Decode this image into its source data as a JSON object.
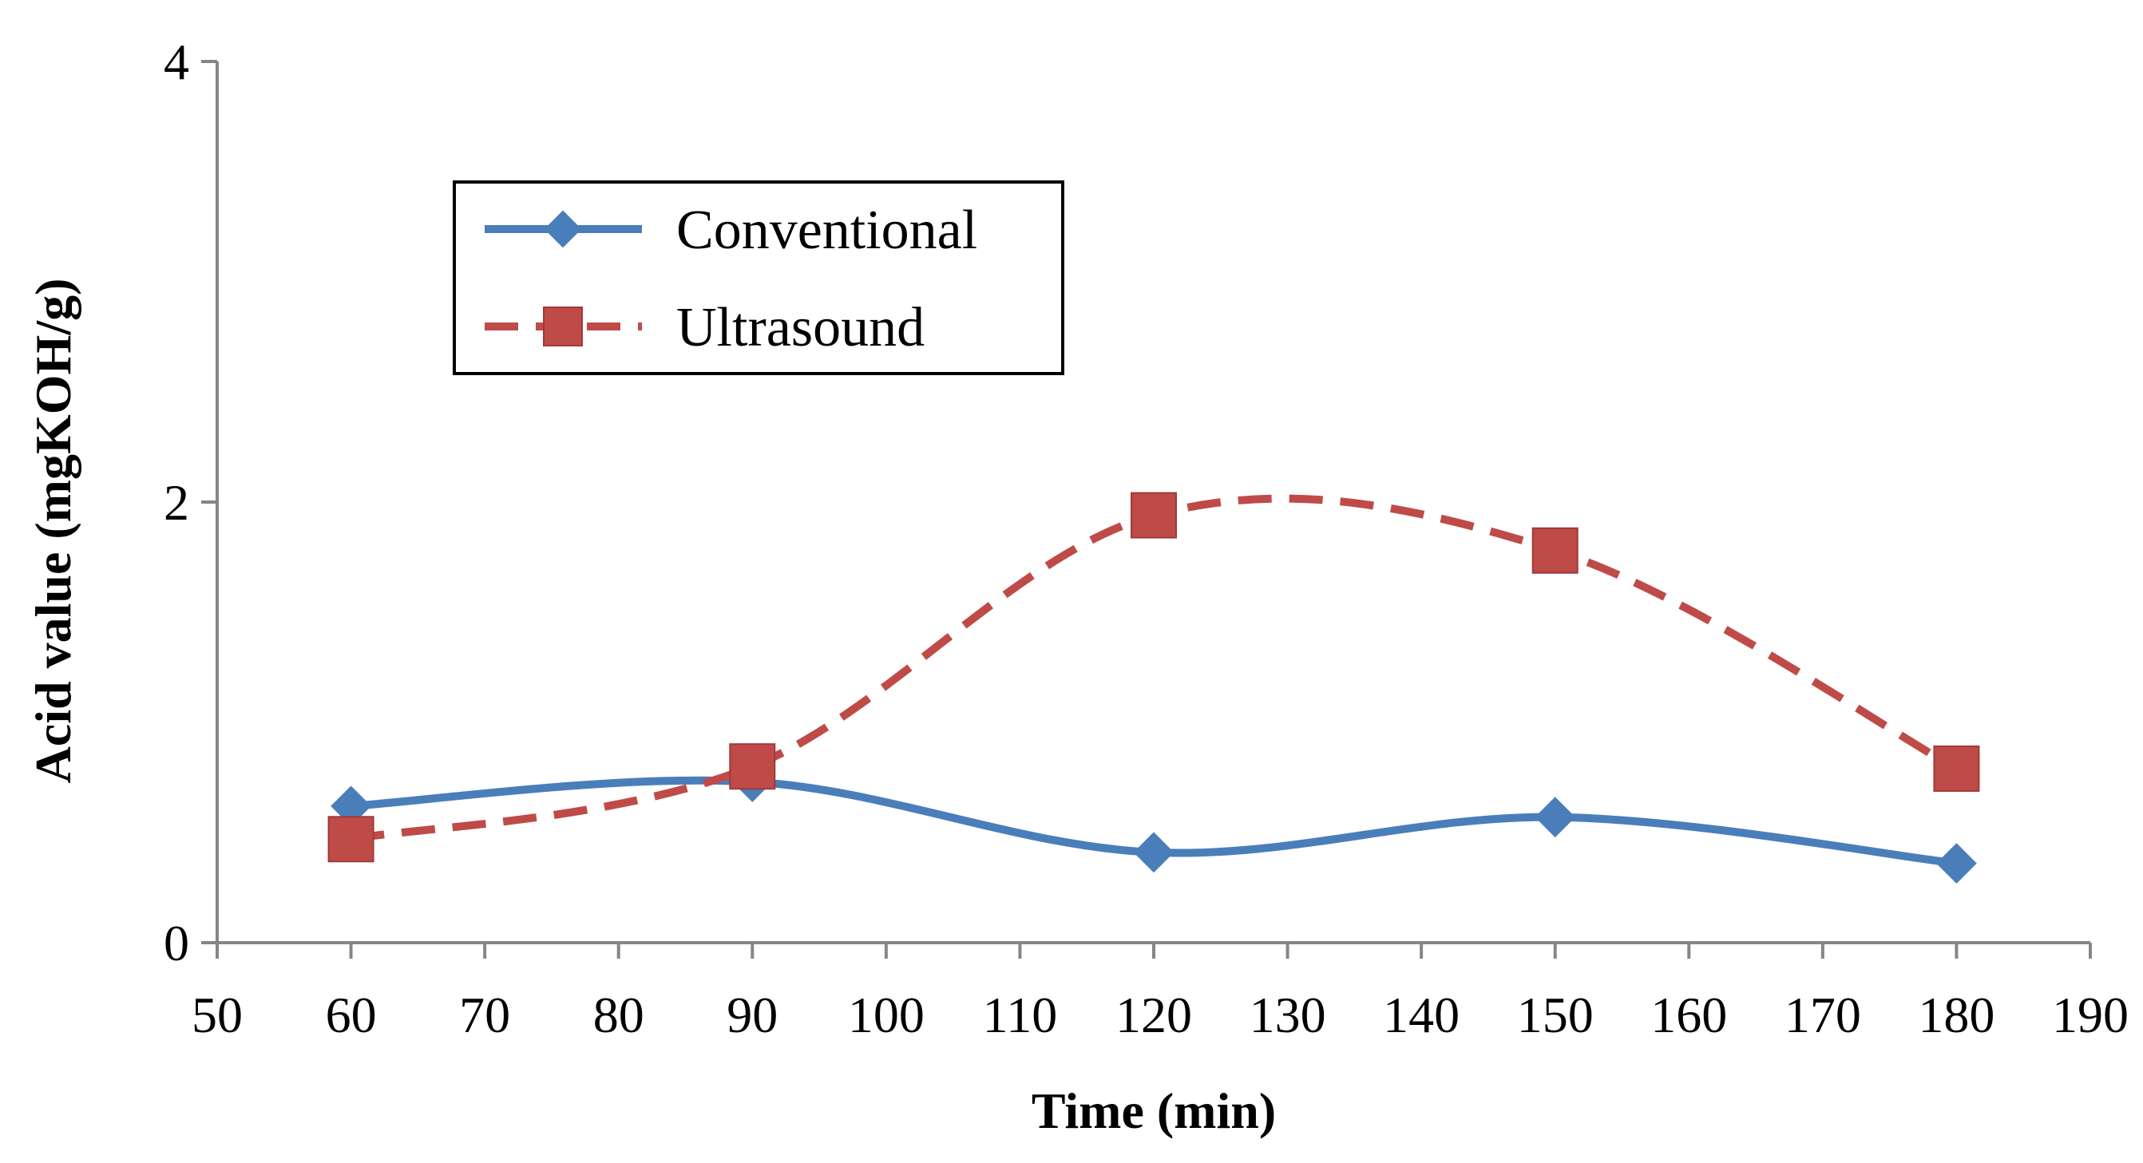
{
  "chart_data": {
    "type": "line",
    "title": "",
    "xlabel": "Time (min)",
    "ylabel": "Acid value (mgKOH/g)",
    "xlim": [
      50,
      190
    ],
    "ylim": [
      0,
      4
    ],
    "xticks": [
      50,
      60,
      70,
      80,
      90,
      100,
      110,
      120,
      130,
      140,
      150,
      160,
      170,
      180,
      190
    ],
    "yticks": [
      0,
      2,
      4
    ],
    "grid": false,
    "legend_position": "top-left",
    "series": [
      {
        "name": "Conventional",
        "color": "#4A7EBB",
        "marker": "diamond",
        "line_style": "solid",
        "smooth": true,
        "x": [
          60,
          90,
          120,
          150,
          180
        ],
        "y": [
          0.62,
          0.73,
          0.41,
          0.57,
          0.36
        ]
      },
      {
        "name": "Ultrasound",
        "color": "#BE4B48",
        "marker": "square",
        "line_style": "dashed",
        "smooth": true,
        "x": [
          60,
          90,
          120,
          150,
          180
        ],
        "y": [
          0.47,
          0.8,
          1.94,
          1.78,
          0.79
        ]
      }
    ]
  }
}
